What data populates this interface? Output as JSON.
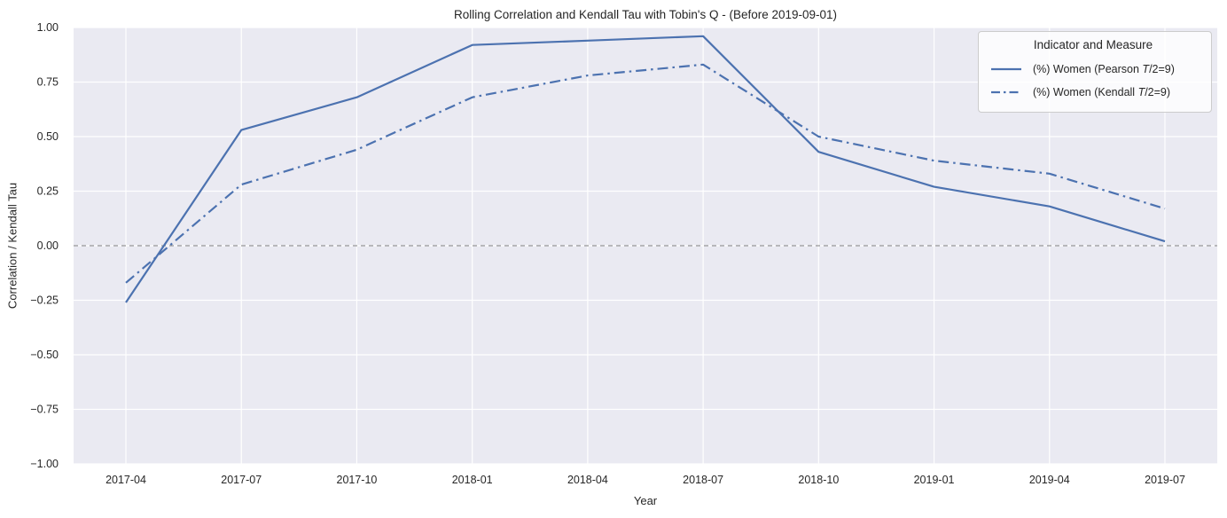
{
  "title": "Rolling Correlation and Kendall Tau with Tobin's Q - (Before 2019-09-01)",
  "legend": {
    "title": "Indicator and Measure",
    "entries": [
      {
        "prefix": "(%) Women (Pearson ",
        "math": "T",
        "suffix": "/2=9)",
        "line_style": "solid"
      },
      {
        "prefix": "(%) Women (Kendall ",
        "math": "T",
        "suffix": "/2=9)",
        "line_style": "dashdot"
      }
    ]
  },
  "colors": {
    "line": "#4c72b0",
    "plot_background": "#eaeaf2",
    "grid": "#ffffff",
    "zero_line": "#7f7f7f",
    "text": "#262626"
  },
  "chart_data": {
    "type": "line",
    "title": "Rolling Correlation and Kendall Tau with Tobin's Q - (Before 2019-09-01)",
    "xlabel": "Year",
    "ylabel": "Correlation / Kendall Tau",
    "x": [
      "2017-04",
      "2017-07",
      "2017-10",
      "2018-01",
      "2018-04",
      "2018-07",
      "2018-10",
      "2019-01",
      "2019-04",
      "2019-07"
    ],
    "series": [
      {
        "name": "(%) Women (Pearson T/2=9)",
        "key": "pearson",
        "style": "solid",
        "values": [
          -0.26,
          0.53,
          0.68,
          0.92,
          0.94,
          0.96,
          0.43,
          0.27,
          0.18,
          0.02
        ]
      },
      {
        "name": "(%) Women (Kendall T/2=9)",
        "key": "kendall",
        "style": "dashdot",
        "values": [
          -0.17,
          0.28,
          0.44,
          0.68,
          0.78,
          0.83,
          0.5,
          0.39,
          0.33,
          0.17
        ]
      }
    ],
    "ylim": [
      -1,
      1
    ],
    "yticks": [
      -1.0,
      -0.75,
      -0.5,
      -0.25,
      0.0,
      0.25,
      0.5,
      0.75,
      1.0
    ],
    "zero_line": true,
    "grid": true,
    "legend_position": "upper right"
  }
}
